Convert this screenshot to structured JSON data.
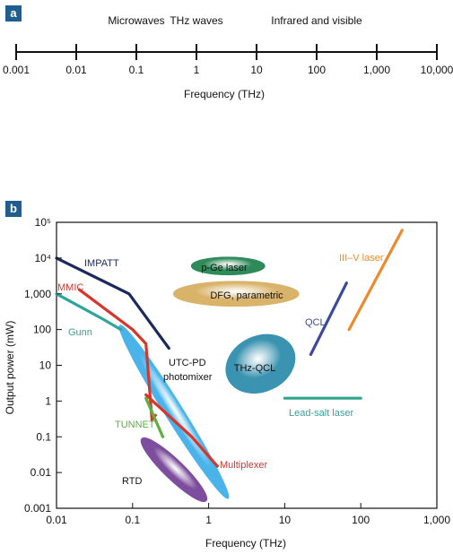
{
  "panels": {
    "a_label": "a",
    "b_label": "b"
  },
  "chart_data": [
    {
      "type": "axis",
      "scale": "log",
      "tick_labels": [
        "0.001",
        "0.01",
        "0.1",
        "1",
        "10",
        "100",
        "1,000",
        "10,000"
      ],
      "tick_values": [
        0.001,
        0.01,
        0.1,
        1,
        10,
        100,
        1000,
        10000
      ],
      "band_labels": [
        {
          "text": "Microwaves",
          "x": 0.1
        },
        {
          "text": "THz waves",
          "x": 1
        },
        {
          "text": "Infrared and visible",
          "x": 100
        }
      ],
      "xlabel": "Frequency (THz)"
    },
    {
      "type": "line",
      "xscale": "log",
      "yscale": "log",
      "xlim": [
        0.01,
        1000
      ],
      "ylim": [
        0.001,
        100000
      ],
      "xlabel": "Frequency (THz)",
      "ylabel": "Output power  (mW)",
      "x_tick_labels": [
        "0.01",
        "0.1",
        "1",
        "10",
        "100",
        "1,000"
      ],
      "x_tick_values": [
        0.01,
        0.1,
        1,
        10,
        100,
        1000
      ],
      "y_tick_labels": [
        "0.001",
        "0.01",
        "0.1",
        "1",
        "10",
        "100",
        "1,000",
        "10⁴",
        "10⁵"
      ],
      "y_tick_values": [
        0.001,
        0.01,
        0.1,
        1,
        10,
        100,
        1000,
        10000,
        100000
      ],
      "grid": false,
      "series": [
        {
          "name": "IMPATT",
          "color": "#1b2a5e",
          "x": [
            0.01,
            0.09,
            0.3
          ],
          "y": [
            10000,
            1000,
            30
          ]
        },
        {
          "name": "MMIC",
          "color": "#d9352a",
          "x": [
            0.02,
            0.1,
            0.15,
            0.18,
            0.2
          ],
          "y": [
            1300,
            100,
            40,
            0.3,
            0.4
          ]
        },
        {
          "name": "Gunn",
          "color": "#2ea59b",
          "x": [
            0.01,
            0.04,
            0.07
          ],
          "y": [
            1000,
            200,
            100
          ]
        },
        {
          "name": "TUNNET",
          "color": "#5bb042",
          "x": [
            0.15,
            0.25
          ],
          "y": [
            1.2,
            0.1
          ]
        },
        {
          "name": "Multiplexer",
          "color": "#d9352a",
          "x": [
            0.15,
            0.6,
            1.3
          ],
          "y": [
            1.5,
            0.1,
            0.015
          ]
        },
        {
          "name": "QCL",
          "color": "#3a4a9c",
          "x": [
            22,
            65
          ],
          "y": [
            20,
            2000
          ]
        },
        {
          "name": "III–V laser",
          "color": "#ef8a2c",
          "x": [
            70,
            350
          ],
          "y": [
            100,
            60000
          ]
        },
        {
          "name": "Lead-salt laser",
          "color": "#34a38c",
          "x": [
            10,
            100
          ],
          "y": [
            1.2,
            1.2
          ]
        }
      ],
      "regions": [
        {
          "label": "p-Ge laser",
          "color": "#2f8a5a",
          "center": [
            1.8,
            6000
          ]
        },
        {
          "label": "DFG, parametric",
          "color": "#d9b36a",
          "center": [
            2.3,
            1000
          ]
        },
        {
          "label": "UTC-PD\nphotomixer",
          "color": "#4ab4ea",
          "center": [
            0.35,
            0.5
          ]
        },
        {
          "label": "THz-QCL",
          "color": "#3a93b0",
          "center": [
            4.8,
            11
          ]
        },
        {
          "label": "RTD",
          "color": "#7e4e9e",
          "center": [
            0.35,
            0.012
          ]
        }
      ],
      "labels": {
        "impatt": "IMPATT",
        "mmic": "MMIC",
        "gunn": "Gunn",
        "utc_pd": "UTC-PD",
        "photomixer": "photomixer",
        "tunnet": "TUNNET",
        "rtd": "RTD",
        "multiplexer": "Multiplexer",
        "pge": "p-Ge laser",
        "dfg": "DFG, parametric",
        "thzqcl": "THz-QCL",
        "qcl": "QCL",
        "iiiv": "III–V laser",
        "leadsalt": "Lead-salt laser"
      }
    }
  ]
}
